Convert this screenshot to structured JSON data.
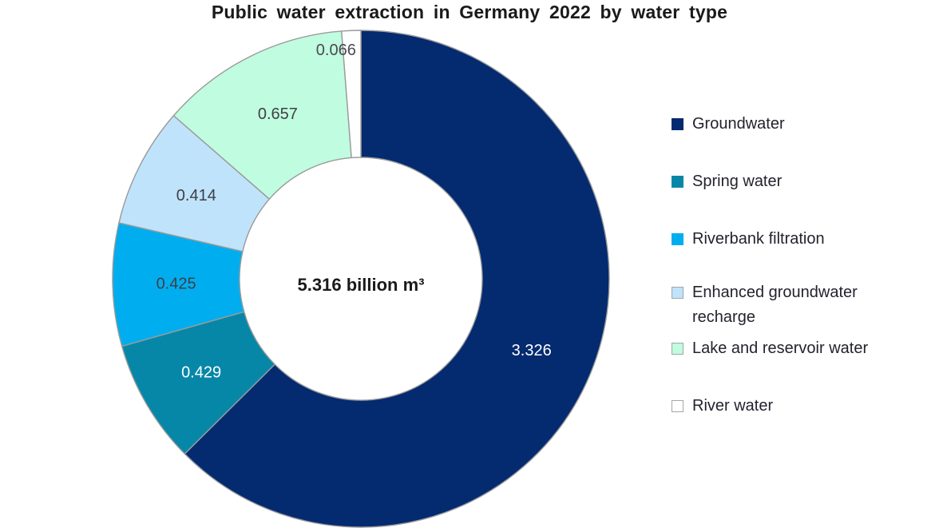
{
  "title": "Public water extraction in Germany 2022 by water type",
  "chart_data": {
    "type": "pie",
    "donut": true,
    "title": "Public water extraction in Germany 2022 by water type",
    "center_label": {
      "text": "5.316 billion m³",
      "value": 5.316,
      "unit": "billion m³"
    },
    "total_displayed": 5.316,
    "start_angle_deg": 0,
    "direction": "clockwise",
    "legend_position": "right",
    "slice_border_color": "#9a9a9a",
    "segments": [
      {
        "label": "Groundwater",
        "value": 3.326,
        "display": "3.326",
        "color": "#042a70",
        "label_color": "#ffffff",
        "label_placement": "inside"
      },
      {
        "label": "Spring water",
        "value": 0.429,
        "display": "0.429",
        "color": "#0787a8",
        "label_color": "#ffffff",
        "label_placement": "inside"
      },
      {
        "label": "Riverbank filtration",
        "value": 0.425,
        "display": "0.425",
        "color": "#00aeef",
        "label_color": "#3f3f46",
        "label_placement": "inside"
      },
      {
        "label": "Enhanced groundwater recharge",
        "value": 0.414,
        "display": "0.414",
        "color": "#bfe3fa",
        "label_color": "#3f3f46",
        "label_placement": "inside"
      },
      {
        "label": "Lake and reservoir water",
        "value": 0.657,
        "display": "0.657",
        "color": "#c0fcdf",
        "label_color": "#3f3f46",
        "label_placement": "inside"
      },
      {
        "label": "River water",
        "value": 0.066,
        "display": "0.066",
        "color": "#ffffff",
        "label_color": "#4a4a52",
        "label_placement": "outside"
      }
    ]
  }
}
